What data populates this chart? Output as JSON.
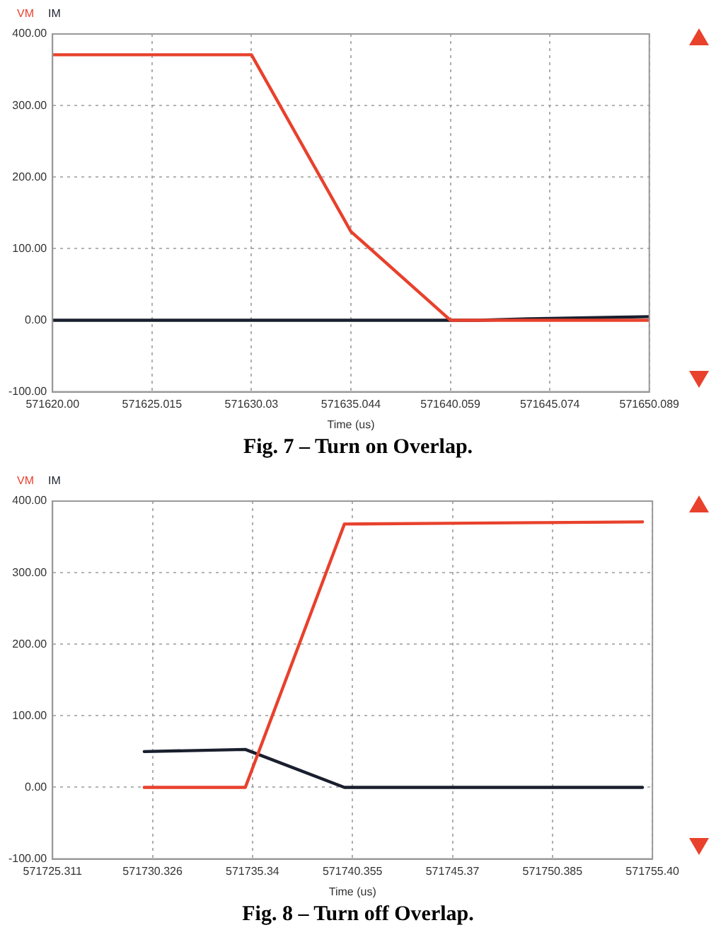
{
  "chart_data": [
    {
      "type": "line",
      "xlabel": "Time (us)",
      "legend": "top left",
      "grid": true,
      "marker": "none",
      "line_style": "solid",
      "annotations": [
        "Fig. 7 – Turn on Overlap."
      ],
      "xlim": [
        571620,
        571650.089
      ],
      "xticks": [
        {
          "value": 571620,
          "label": "571620.00"
        },
        {
          "value": 571625.015,
          "label": "571625.015"
        },
        {
          "value": 571630.03,
          "label": "571630.03"
        },
        {
          "value": 571635.044,
          "label": "571635.044"
        },
        {
          "value": 571640.059,
          "label": "571640.059"
        },
        {
          "value": 571645.074,
          "label": "571645.074"
        },
        {
          "value": 571650.089,
          "label": "571650.089"
        }
      ],
      "ylim": [
        -100,
        400
      ],
      "yticks": [
        {
          "value": -100,
          "label": "-100.00"
        },
        {
          "value": 0,
          "label": "0.00"
        },
        {
          "value": 100,
          "label": "100.00"
        },
        {
          "value": 200,
          "label": "200.00"
        },
        {
          "value": 300,
          "label": "300.00"
        },
        {
          "value": 400,
          "label": "400.00"
        }
      ],
      "series": [
        {
          "name": "VM",
          "color": "#e8412c",
          "x": [
            571620,
            571630.03,
            571635.044,
            571640.059,
            571650.089
          ],
          "values": [
            371,
            371,
            124,
            0,
            0
          ]
        },
        {
          "name": "IM",
          "color": "#1a1f2e",
          "x": [
            571620,
            571641.5,
            571644,
            571646,
            571648,
            571650.089
          ],
          "values": [
            0,
            0,
            2,
            3,
            4,
            5
          ]
        }
      ]
    },
    {
      "type": "line",
      "xlabel": "Time (us)",
      "legend": "top left",
      "grid": true,
      "marker": "none",
      "line_style": "solid",
      "annotations": [
        "Fig. 8 – Turn off Overlap."
      ],
      "xlim": [
        571725.311,
        571755.4
      ],
      "xticks": [
        {
          "value": 571725.311,
          "label": "571725.311"
        },
        {
          "value": 571730.326,
          "label": "571730.326"
        },
        {
          "value": 571735.34,
          "label": "571735.34"
        },
        {
          "value": 571740.355,
          "label": "571740.355"
        },
        {
          "value": 571745.37,
          "label": "571745.37"
        },
        {
          "value": 571750.385,
          "label": "571750.385"
        },
        {
          "value": 571755.4,
          "label": "571755.40"
        }
      ],
      "ylim": [
        -100,
        400
      ],
      "yticks": [
        {
          "value": -100,
          "label": "-100.00"
        },
        {
          "value": 0,
          "label": "0.00"
        },
        {
          "value": 100,
          "label": "100.00"
        },
        {
          "value": 200,
          "label": "200.00"
        },
        {
          "value": 300,
          "label": "300.00"
        },
        {
          "value": 400,
          "label": "400.00"
        }
      ],
      "series": [
        {
          "name": "VM",
          "color": "#e8412c",
          "x": [
            571729.91,
            571734.98,
            571739.95,
            571745,
            571750,
            571754.9
          ],
          "values": [
            0,
            0,
            368,
            369,
            370,
            371
          ]
        },
        {
          "name": "IM",
          "color": "#1a1f2e",
          "x": [
            571729.91,
            571734.98,
            571739.95,
            571754.9
          ],
          "values": [
            50,
            53,
            0,
            0
          ]
        }
      ]
    }
  ]
}
